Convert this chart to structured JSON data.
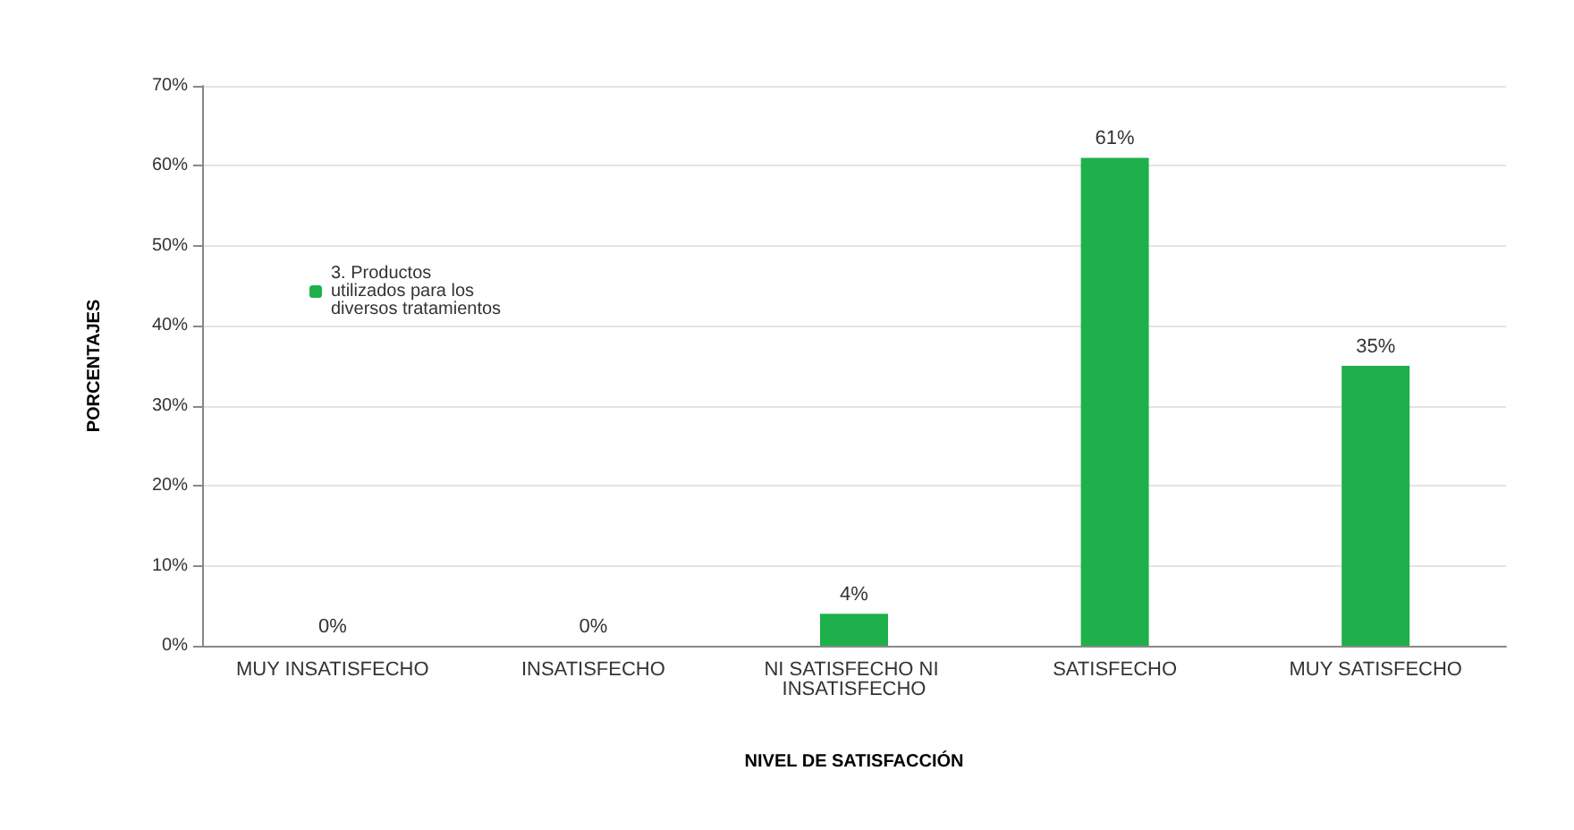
{
  "chart_data": {
    "type": "bar",
    "xlabel": "NIVEL DE SATISFACCIÓN",
    "ylabel": "PORCENTAJES",
    "categories": [
      "MUY INSATISFECHO",
      "INSATISFECHO",
      "NI SATISFECHO NI INSATISFECHO",
      "SATISFECHO",
      "MUY SATISFECHO"
    ],
    "series": [
      {
        "name": "3. Productos utilizados para los diversos tratamientos",
        "color": "#1eb04a",
        "values": [
          0,
          0,
          4,
          61,
          35
        ],
        "value_labels": [
          "0%",
          "0%",
          "4%",
          "61%",
          "35%"
        ]
      }
    ],
    "ylim": [
      0,
      70
    ],
    "yticks": [
      {
        "value": 0,
        "label": "0%"
      },
      {
        "value": 10,
        "label": "10%"
      },
      {
        "value": 20,
        "label": "20%"
      },
      {
        "value": 30,
        "label": "30%"
      },
      {
        "value": 40,
        "label": "40%"
      },
      {
        "value": 50,
        "label": "50%"
      },
      {
        "value": 60,
        "label": "60%"
      },
      {
        "value": 70,
        "label": "70%"
      }
    ],
    "grid": "y",
    "legend": "left"
  }
}
